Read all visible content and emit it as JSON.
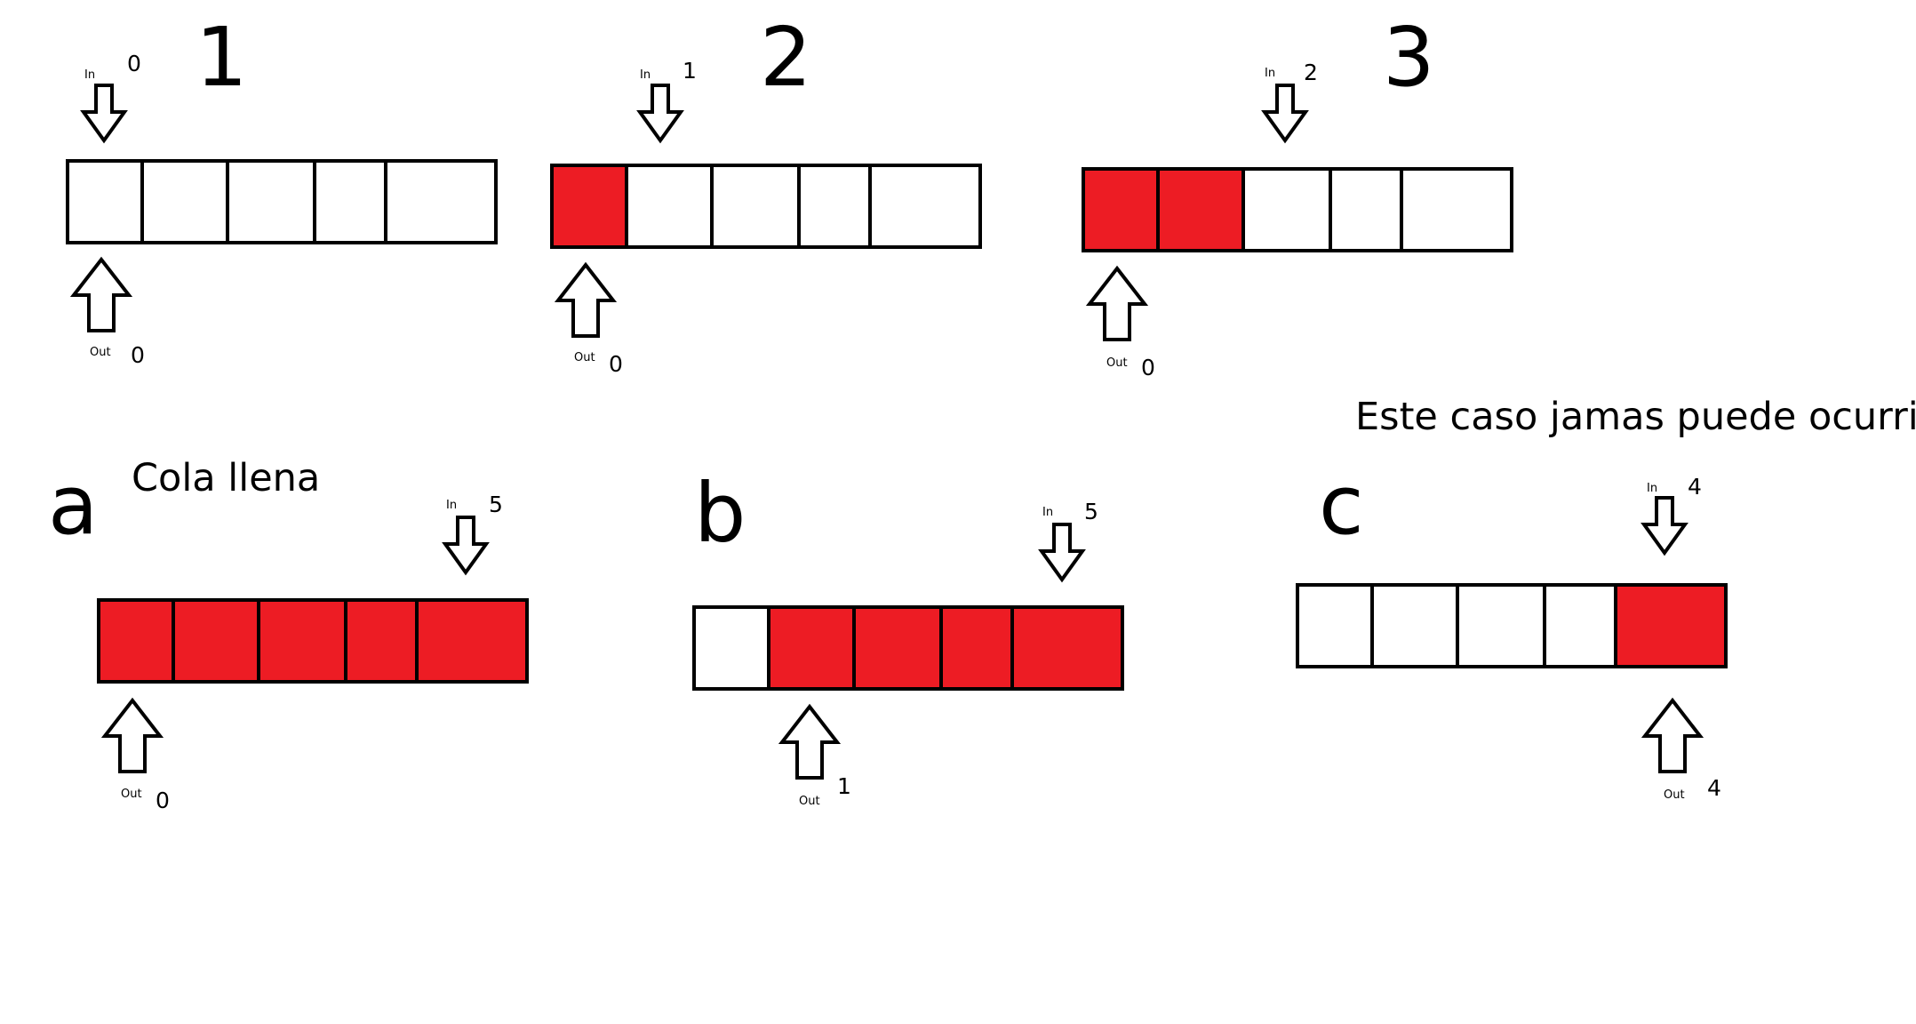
{
  "colors": {
    "filled": "#ed1c24",
    "empty": "#ffffff",
    "stroke": "#000000"
  },
  "caption_impossible": "Este caso jamas puede ocurrir",
  "panels": [
    {
      "label": "1",
      "caption": "",
      "cells": [
        false,
        false,
        false,
        false,
        false
      ],
      "pointer_in_label": "In",
      "pointer_in_value": "0",
      "pointer_in_slot": 0,
      "pointer_out_label": "Out",
      "pointer_out_value": "0",
      "pointer_out_slot": 0
    },
    {
      "label": "2",
      "caption": "",
      "cells": [
        true,
        false,
        false,
        false,
        false
      ],
      "pointer_in_label": "In",
      "pointer_in_value": "1",
      "pointer_in_slot": 1,
      "pointer_out_label": "Out",
      "pointer_out_value": "0",
      "pointer_out_slot": 0
    },
    {
      "label": "3",
      "caption": "",
      "cells": [
        true,
        true,
        false,
        false,
        false
      ],
      "pointer_in_label": "In",
      "pointer_in_value": "2",
      "pointer_in_slot": 2,
      "pointer_out_label": "Out",
      "pointer_out_value": "0",
      "pointer_out_slot": 0
    },
    {
      "label": "a",
      "caption": "Cola llena",
      "cells": [
        true,
        true,
        true,
        true,
        true
      ],
      "pointer_in_label": "In",
      "pointer_in_value": "5",
      "pointer_in_slot": 4,
      "pointer_out_label": "Out",
      "pointer_out_value": "0",
      "pointer_out_slot": 0
    },
    {
      "label": "b",
      "caption": "",
      "cells": [
        false,
        true,
        true,
        true,
        true
      ],
      "pointer_in_label": "In",
      "pointer_in_value": "5",
      "pointer_in_slot": 4,
      "pointer_out_label": "Out",
      "pointer_out_value": "1",
      "pointer_out_slot": 1
    },
    {
      "label": "c",
      "caption": "",
      "cells": [
        false,
        false,
        false,
        false,
        true
      ],
      "pointer_in_label": "In",
      "pointer_in_value": "4",
      "pointer_in_slot": 4,
      "pointer_out_label": "Out",
      "pointer_out_value": "4",
      "pointer_out_slot": 4
    }
  ]
}
